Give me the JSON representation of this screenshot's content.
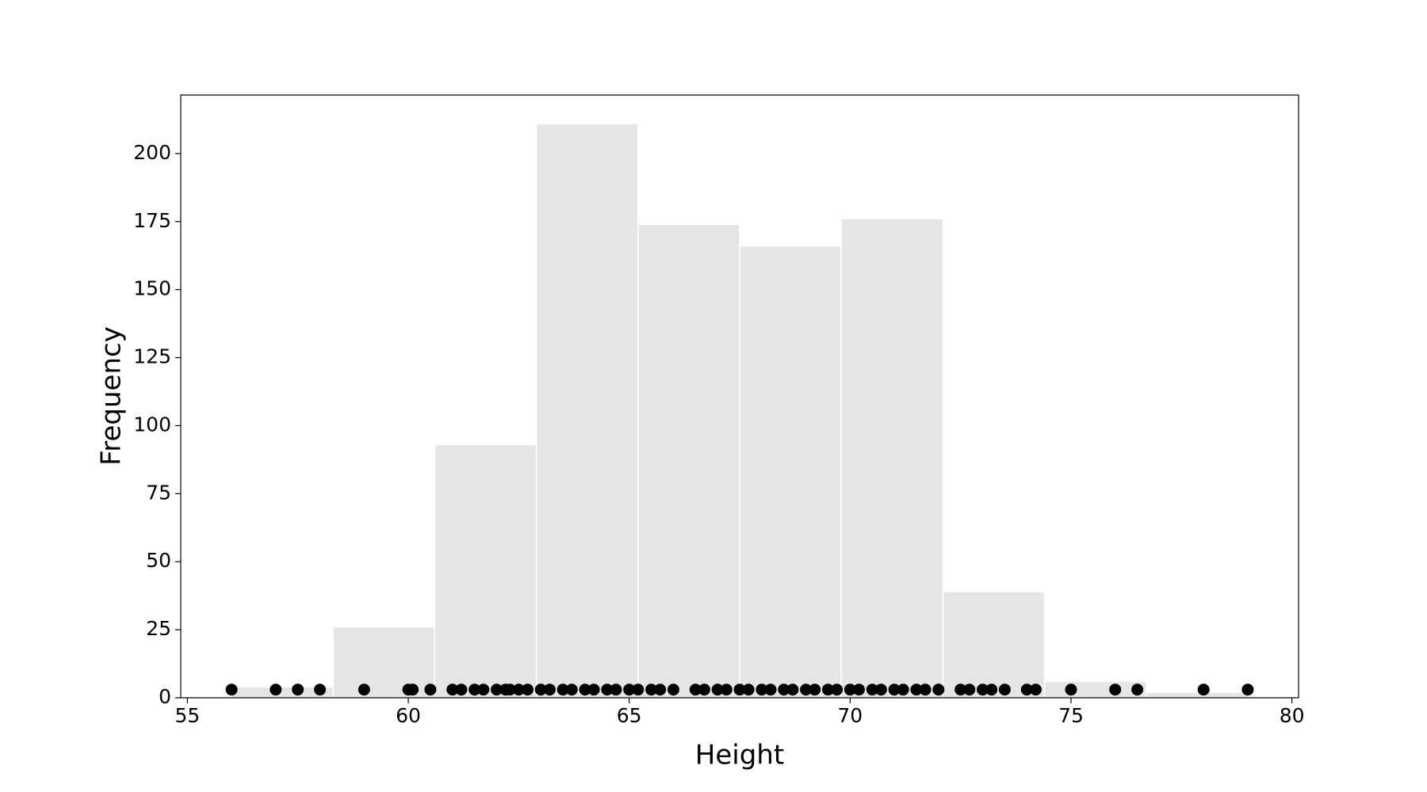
{
  "chart_data": [
    {
      "type": "histogram",
      "xlabel": "Height",
      "ylabel": "Frequency",
      "bins": [
        56,
        58.3,
        60.6,
        62.9,
        65.2,
        67.5,
        69.8,
        72.1,
        74.4,
        76.7,
        79
      ],
      "values": [
        4,
        26,
        93,
        211,
        174,
        166,
        176,
        39,
        6,
        2
      ],
      "color": "#e5e5e5",
      "edgecolor": "#ffffff",
      "xlim": [
        54.85,
        80.15
      ],
      "ylim": [
        0,
        221.5
      ],
      "xticks": [
        55,
        60,
        65,
        70,
        75,
        80
      ],
      "yticks": [
        0,
        25,
        50,
        75,
        100,
        125,
        150,
        175,
        200
      ]
    },
    {
      "type": "scatter",
      "color": "#000000",
      "x": [
        56,
        57,
        57.5,
        58,
        59,
        60,
        60.1,
        60.5,
        61,
        61.2,
        61.5,
        61.7,
        62,
        62.2,
        62.3,
        62.5,
        62.7,
        63,
        63.2,
        63.5,
        63.7,
        64,
        64.2,
        64.5,
        64.7,
        65,
        65.2,
        65.5,
        65.7,
        66,
        66.5,
        66.7,
        67,
        67.2,
        67.5,
        67.7,
        68,
        68.2,
        68.5,
        68.7,
        69,
        69.2,
        69.5,
        69.7,
        70,
        70.2,
        70.5,
        70.7,
        71,
        71.2,
        71.5,
        71.7,
        72,
        72.5,
        72.7,
        73,
        73.2,
        73.5,
        74,
        74.2,
        75,
        76,
        76.5,
        78,
        79
      ],
      "y": [
        3,
        3,
        3,
        3,
        3,
        3,
        3,
        3,
        3,
        3,
        3,
        3,
        3,
        3,
        3,
        3,
        3,
        3,
        3,
        3,
        3,
        3,
        3,
        3,
        3,
        3,
        3,
        3,
        3,
        3,
        3,
        3,
        3,
        3,
        3,
        3,
        3,
        3,
        3,
        3,
        3,
        3,
        3,
        3,
        3,
        3,
        3,
        3,
        3,
        3,
        3,
        3,
        3,
        3,
        3,
        3,
        3,
        3,
        3,
        3,
        3,
        3,
        3,
        3,
        3
      ]
    }
  ]
}
